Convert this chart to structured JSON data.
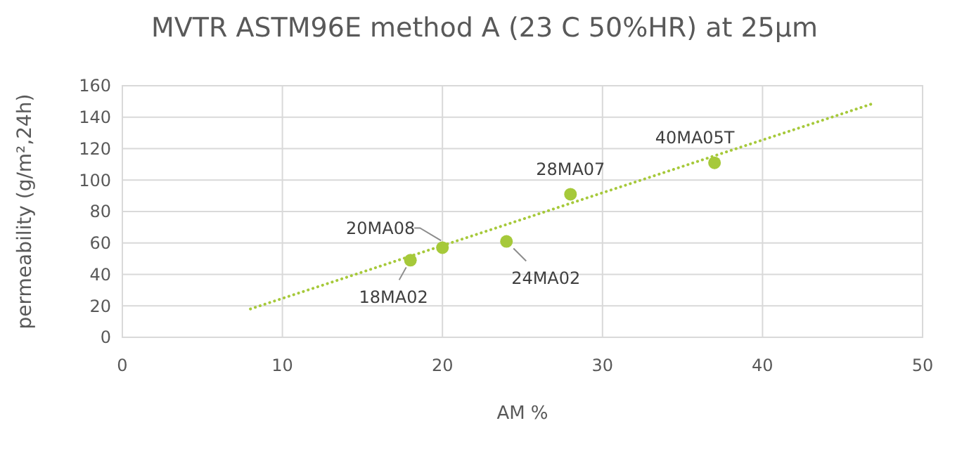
{
  "chart_data": {
    "type": "scatter",
    "title": "MVTR ASTM96E method A (23  C 50%HR) at 25µm",
    "xlabel": "AM %",
    "ylabel": "permeability (g/m²,24h)",
    "x": [
      18,
      20,
      24,
      28,
      37
    ],
    "series": [
      {
        "color": "#a6c93a",
        "values": [
          49,
          57,
          61,
          91,
          111
        ]
      },
      {
        "type": "line",
        "color": "#a6c93a",
        "x": [
          8,
          47
        ],
        "values": [
          18,
          149
        ],
        "line_style": "dotted"
      }
    ],
    "annotations": [
      {
        "text": "18MA02",
        "x": 18,
        "y": 49
      },
      {
        "text": "20MA08",
        "x": 20,
        "y": 57
      },
      {
        "text": "24MA02",
        "x": 24,
        "y": 61
      },
      {
        "text": "28MA07",
        "x": 28,
        "y": 91
      },
      {
        "text": "40MA05T",
        "x": 37,
        "y": 111
      }
    ],
    "xlim": [
      0,
      50
    ],
    "xticks": [
      0,
      10,
      20,
      30,
      40,
      50
    ],
    "ylim": [
      0,
      160
    ],
    "yticks": [
      0,
      20,
      40,
      60,
      80,
      100,
      120,
      140,
      160
    ],
    "grid": true
  }
}
